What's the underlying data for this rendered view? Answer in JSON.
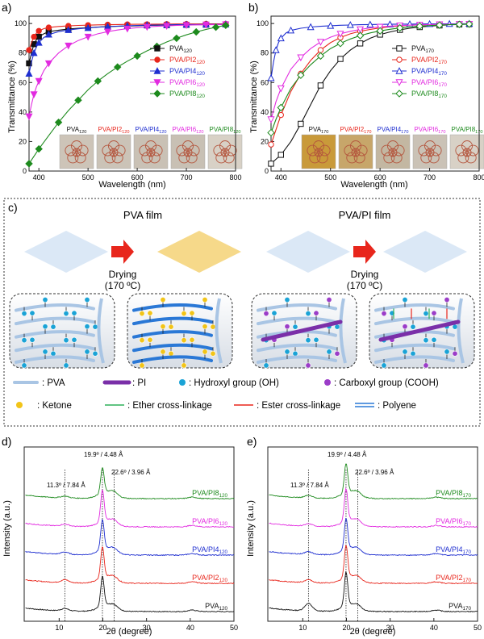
{
  "colors": {
    "black": "#111111",
    "red": "#e8261c",
    "blue": "#1f2fd0",
    "magenta": "#e22be0",
    "green": "#1d8a1d",
    "film": "#dbe8f6",
    "film_yellow": "#f6d98a",
    "pva_chain": "#a9c5e4",
    "pi_chain": "#7a2fa8",
    "oh": "#1aa3d6",
    "cooh": "#9b3dc8",
    "ketone": "#f2c418",
    "ether": "#2eb05a",
    "ester": "#e8261c",
    "polyene": "#2a78d6",
    "arrow": "#e8261c",
    "photo_bg": "#cfc7bd",
    "panel_c_border": "#333333"
  },
  "panel_a": {
    "label": "a)",
    "ylabel": "Transmittance (%)",
    "xlabel": "Wavelength (nm)",
    "photos": [
      {
        "base": "PVA",
        "sub": "120",
        "color": "#111111",
        "tint": "#cdc4b8"
      },
      {
        "base": "PVA/PI2",
        "sub": "120",
        "color": "#e8261c",
        "tint": "#cbc3b7"
      },
      {
        "base": "PVA/PI4",
        "sub": "120",
        "color": "#1f2fd0",
        "tint": "#c9c1b5"
      },
      {
        "base": "PVA/PI6",
        "sub": "120",
        "color": "#e22be0",
        "tint": "#c8c0b4"
      },
      {
        "base": "PVA/PI8",
        "sub": "120",
        "color": "#1d8a1d",
        "tint": "#d8d1c6"
      }
    ]
  },
  "panel_b": {
    "label": "b)",
    "ylabel": "Transmittance (%)",
    "xlabel": "Wavelength (nm)",
    "photos": [
      {
        "base": "PVA",
        "sub": "170",
        "color": "#111111",
        "tint": "#c99a3a"
      },
      {
        "base": "PVA/PI2",
        "sub": "170",
        "color": "#e8261c",
        "tint": "#c7a66a"
      },
      {
        "base": "PVA/PI4",
        "sub": "170",
        "color": "#1f2fd0",
        "tint": "#c3b7a2"
      },
      {
        "base": "PVA/PI6",
        "sub": "170",
        "color": "#e22be0",
        "tint": "#cac2b6"
      },
      {
        "base": "PVA/PI8",
        "sub": "170",
        "color": "#1d8a1d",
        "tint": "#d8d1c6"
      }
    ]
  },
  "panel_c": {
    "label": "c)",
    "title_left": "PVA film",
    "title_right": "PVA/PI film",
    "drying_line1": "Drying",
    "drying_line2": "(170 ºC)",
    "legend": [
      {
        "key": "pva",
        "text": ": PVA"
      },
      {
        "key": "pi",
        "text": ": PI"
      },
      {
        "key": "oh",
        "text": ": Hydroxyl group (OH)"
      },
      {
        "key": "cooh",
        "text": ": Carboxyl group (COOH)"
      },
      {
        "key": "ketone",
        "text": ": Ketone"
      },
      {
        "key": "ether",
        "text": ": Ether cross-linkage"
      },
      {
        "key": "ester",
        "text": ": Ester cross-linkage"
      },
      {
        "key": "polyene",
        "text": ": Polyene"
      }
    ]
  },
  "panel_d": {
    "label": "d)",
    "ylabel": "Intensity (a.u.)",
    "xlabel": "2θ (degree)",
    "ann_left": "11.3º / 7.84 Å",
    "ann_top": "19.9º / 4.48 Å",
    "ann_right": "22.6º / 3.96 Å",
    "series_labels": [
      {
        "base": "PVA",
        "sub": "120"
      },
      {
        "base": "PVA/PI2",
        "sub": "120"
      },
      {
        "base": "PVA/PI4",
        "sub": "120"
      },
      {
        "base": "PVA/PI6",
        "sub": "120"
      },
      {
        "base": "PVA/PI8",
        "sub": "120"
      }
    ]
  },
  "panel_e": {
    "label": "e)",
    "ylabel": "Intensity (a.u.)",
    "xlabel": "2θ (degree)",
    "ann_left": "11.3º / 7.84 Å",
    "ann_top": "19.9º / 4.48 Å",
    "ann_right": "22.6º / 3.96 Å",
    "series_labels": [
      {
        "base": "PVA",
        "sub": "170"
      },
      {
        "base": "PVA/PI2",
        "sub": "170"
      },
      {
        "base": "PVA/PI4",
        "sub": "170"
      },
      {
        "base": "PVA/PI6",
        "sub": "170"
      },
      {
        "base": "PVA/PI8",
        "sub": "170"
      }
    ]
  },
  "chart_data": [
    {
      "id": "a",
      "type": "line",
      "xlabel": "Wavelength (nm)",
      "ylabel": "Transmittance (%)",
      "xlim": [
        380,
        800
      ],
      "ylim": [
        0,
        105
      ],
      "xticks": [
        400,
        500,
        600,
        700,
        800
      ],
      "yticks": [
        0,
        20,
        40,
        60,
        80,
        100
      ],
      "legend_position": "right",
      "series": [
        {
          "name": "PVA120",
          "color": "#111111",
          "marker": "square-filled",
          "x": [
            380,
            385,
            390,
            395,
            400,
            410,
            420,
            440,
            460,
            480,
            500,
            520,
            540,
            560,
            580,
            600,
            620,
            640,
            660,
            680,
            700,
            720,
            740,
            760,
            780
          ],
          "y": [
            73,
            80,
            86,
            89,
            91,
            93,
            94.5,
            95.5,
            96.3,
            96.8,
            97.2,
            97.6,
            97.9,
            98.1,
            98.3,
            98.5,
            98.7,
            98.8,
            98.9,
            99.0,
            99.1,
            99.2,
            99.2,
            99.3,
            99.4
          ]
        },
        {
          "name": "PVA/PI2120",
          "color": "#e8261c",
          "marker": "circle-filled",
          "x": [
            380,
            385,
            390,
            395,
            400,
            410,
            420,
            440,
            460,
            480,
            500,
            520,
            540,
            560,
            580,
            600,
            620,
            640,
            660,
            680,
            700,
            720,
            740,
            760,
            780
          ],
          "y": [
            82,
            87,
            91,
            93.5,
            95,
            96.5,
            97.3,
            98,
            98.4,
            98.7,
            98.9,
            99.1,
            99.2,
            99.3,
            99.4,
            99.5,
            99.5,
            99.6,
            99.6,
            99.7,
            99.7,
            99.7,
            99.8,
            99.8,
            99.8
          ]
        },
        {
          "name": "PVA/PI4120",
          "color": "#1f2fd0",
          "marker": "triangle-up",
          "x": [
            380,
            385,
            390,
            395,
            400,
            410,
            420,
            440,
            460,
            480,
            500,
            520,
            540,
            560,
            580,
            600,
            620,
            640,
            660,
            680,
            700,
            720,
            740,
            760,
            780
          ],
          "y": [
            66,
            74,
            80,
            84,
            87,
            90.5,
            92.5,
            94.5,
            95.6,
            96.4,
            97,
            97.5,
            97.9,
            98.2,
            98.5,
            98.7,
            98.9,
            99,
            99.1,
            99.2,
            99.3,
            99.3,
            99.4,
            99.4,
            99.5
          ]
        },
        {
          "name": "PVA/PI6120",
          "color": "#e22be0",
          "marker": "triangle-down",
          "x": [
            380,
            385,
            390,
            395,
            400,
            410,
            420,
            440,
            460,
            480,
            500,
            520,
            540,
            560,
            580,
            600,
            620,
            640,
            660,
            680,
            700,
            720,
            740,
            760,
            780
          ],
          "y": [
            37,
            45,
            52,
            57,
            61,
            68,
            73,
            80,
            85,
            88.5,
            91,
            93,
            94.5,
            95.6,
            96.5,
            97.2,
            97.7,
            98.1,
            98.4,
            98.7,
            98.9,
            99.1,
            99.2,
            99.3,
            99.4
          ]
        },
        {
          "name": "PVA/PI8120",
          "color": "#1d8a1d",
          "marker": "diamond-filled",
          "x": [
            380,
            390,
            400,
            420,
            440,
            460,
            480,
            500,
            520,
            540,
            560,
            580,
            600,
            620,
            640,
            660,
            680,
            700,
            720,
            740,
            760,
            780
          ],
          "y": [
            5,
            10,
            15,
            24,
            33,
            41,
            48,
            55,
            61,
            66,
            70.5,
            74.5,
            78,
            81.5,
            84.5,
            87.5,
            90,
            92.3,
            94.3,
            96,
            97.5,
            98.8
          ]
        }
      ]
    },
    {
      "id": "b",
      "type": "line",
      "xlabel": "Wavelength (nm)",
      "ylabel": "Transmittance (%)",
      "xlim": [
        380,
        800
      ],
      "ylim": [
        0,
        105
      ],
      "xticks": [
        400,
        500,
        600,
        700,
        800
      ],
      "yticks": [
        0,
        20,
        40,
        60,
        80,
        100
      ],
      "legend_position": "right",
      "series": [
        {
          "name": "PVA170",
          "color": "#111111",
          "marker": "square-open",
          "x": [
            380,
            390,
            400,
            420,
            440,
            460,
            480,
            500,
            520,
            540,
            560,
            580,
            600,
            620,
            640,
            660,
            680,
            700,
            720,
            740,
            760,
            780
          ],
          "y": [
            5,
            8,
            11,
            20,
            32,
            45,
            58,
            68,
            76,
            82,
            86.5,
            90,
            92.5,
            94.3,
            95.7,
            96.8,
            97.6,
            98.2,
            98.7,
            99.1,
            99.4,
            99.6
          ]
        },
        {
          "name": "PVA/PI2170",
          "color": "#e8261c",
          "marker": "circle-open",
          "x": [
            380,
            390,
            400,
            420,
            440,
            460,
            480,
            500,
            520,
            540,
            560,
            580,
            600,
            620,
            640,
            660,
            680,
            700,
            720,
            740,
            760,
            780
          ],
          "y": [
            18,
            28,
            38,
            54,
            66,
            75,
            82,
            87,
            90.5,
            93,
            94.8,
            96,
            97,
            97.8,
            98.4,
            98.8,
            99.1,
            99.3,
            99.5,
            99.6,
            99.7,
            99.8
          ]
        },
        {
          "name": "PVA/PI4170",
          "color": "#1f2fd0",
          "marker": "triangle-up-open",
          "x": [
            380,
            385,
            390,
            395,
            400,
            410,
            420,
            440,
            460,
            480,
            500,
            520,
            540,
            560,
            580,
            600,
            620,
            640,
            660,
            680,
            700,
            720,
            740,
            760,
            780
          ],
          "y": [
            63,
            74,
            82,
            87,
            90,
            93.5,
            95.3,
            96.8,
            97.6,
            98.1,
            98.5,
            98.8,
            99,
            99.2,
            99.3,
            99.4,
            99.5,
            99.6,
            99.6,
            99.7,
            99.7,
            99.8,
            99.8,
            99.8,
            99.9
          ]
        },
        {
          "name": "PVA/PI6170",
          "color": "#e22be0",
          "marker": "triangle-down-open",
          "x": [
            380,
            390,
            400,
            420,
            440,
            460,
            480,
            500,
            520,
            540,
            560,
            580,
            600,
            620,
            640,
            660,
            680,
            700,
            720,
            740,
            760,
            780
          ],
          "y": [
            35,
            47,
            56,
            69,
            77,
            83,
            87.5,
            90.7,
            93,
            94.7,
            96,
            97,
            97.7,
            98.2,
            98.6,
            98.9,
            99.1,
            99.3,
            99.4,
            99.5,
            99.6,
            99.7
          ]
        },
        {
          "name": "PVA/PI8170",
          "color": "#1d8a1d",
          "marker": "diamond-open",
          "x": [
            380,
            390,
            400,
            420,
            440,
            460,
            480,
            500,
            520,
            540,
            560,
            580,
            600,
            620,
            640,
            660,
            680,
            700,
            720,
            740,
            760,
            780
          ],
          "y": [
            26,
            35,
            43,
            56,
            65,
            72,
            78,
            83,
            86.5,
            89.5,
            91.8,
            93.6,
            95,
            96.1,
            97,
            97.7,
            98.2,
            98.6,
            98.9,
            99.2,
            99.4,
            99.6
          ]
        }
      ]
    },
    {
      "id": "d",
      "type": "line",
      "subtype": "xrd-stacked",
      "xlabel": "2θ (degree)",
      "ylabel": "Intensity (a.u.)",
      "xlim": [
        2,
        50
      ],
      "xticks": [
        10,
        20,
        30,
        40,
        50
      ],
      "reference_lines": [
        11.3,
        19.9,
        22.6
      ],
      "series": [
        {
          "name": "PVA120",
          "color": "#111111",
          "offset": 0,
          "peak_height": 1.0,
          "shoulder_11": 0.08
        },
        {
          "name": "PVA/PI2120",
          "color": "#e8261c",
          "offset": 1,
          "peak_height": 1.05,
          "shoulder_11": 0.1
        },
        {
          "name": "PVA/PI4120",
          "color": "#1f2fd0",
          "offset": 2,
          "peak_height": 1.0,
          "shoulder_11": 0.08
        },
        {
          "name": "PVA/PI6120",
          "color": "#e22be0",
          "offset": 3,
          "peak_height": 1.05,
          "shoulder_11": 0.07
        },
        {
          "name": "PVA/PI8120",
          "color": "#1d8a1d",
          "offset": 4,
          "peak_height": 0.85,
          "shoulder_11": 0.06
        }
      ]
    },
    {
      "id": "e",
      "type": "line",
      "subtype": "xrd-stacked",
      "xlabel": "2θ (degree)",
      "ylabel": "Intensity (a.u.)",
      "xlim": [
        2,
        50
      ],
      "xticks": [
        10,
        20,
        30,
        40,
        50
      ],
      "reference_lines": [
        11.3,
        19.9,
        22.6
      ],
      "series": [
        {
          "name": "PVA170",
          "color": "#111111",
          "offset": 0,
          "peak_height": 1.15,
          "shoulder_11": 0.25
        },
        {
          "name": "PVA/PI2170",
          "color": "#e8261c",
          "offset": 1,
          "peak_height": 1.1,
          "shoulder_11": 0.1
        },
        {
          "name": "PVA/PI4170",
          "color": "#1f2fd0",
          "offset": 2,
          "peak_height": 1.05,
          "shoulder_11": 0.09
        },
        {
          "name": "PVA/PI6170",
          "color": "#e22be0",
          "offset": 3,
          "peak_height": 1.1,
          "shoulder_11": 0.08
        },
        {
          "name": "PVA/PI8170",
          "color": "#1d8a1d",
          "offset": 4,
          "peak_height": 1.0,
          "shoulder_11": 0.08
        }
      ]
    }
  ]
}
